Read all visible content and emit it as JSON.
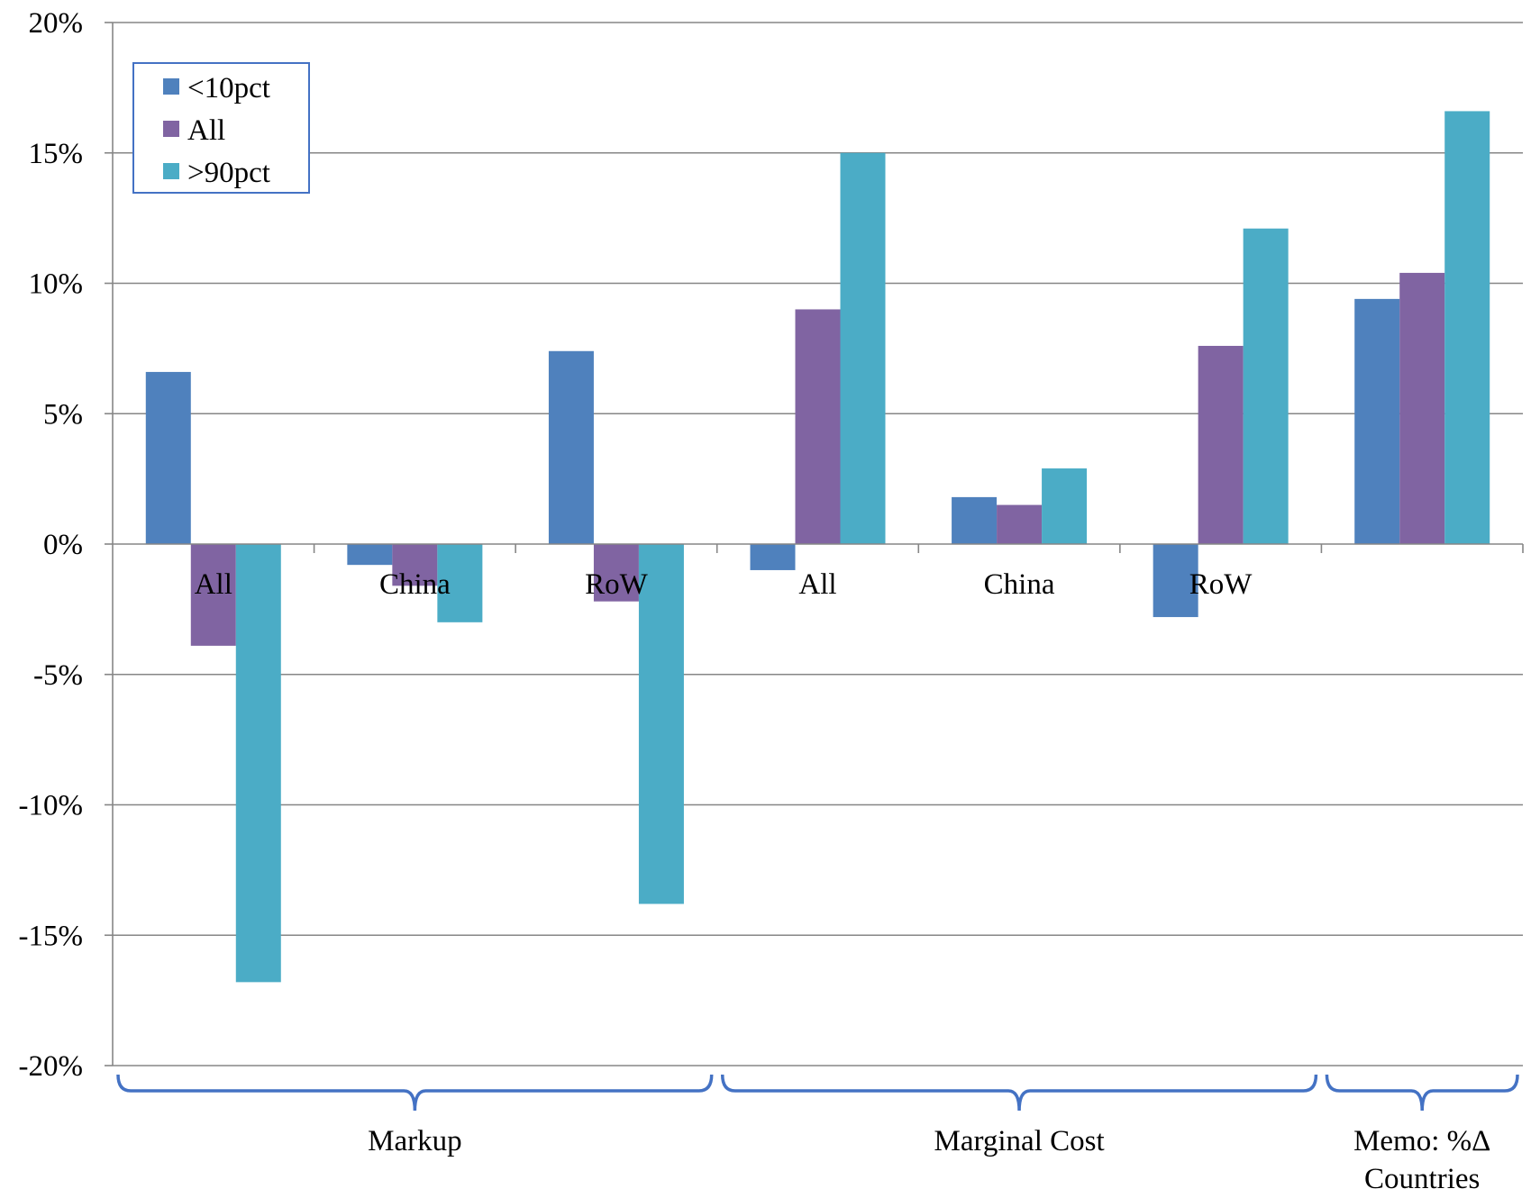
{
  "chart_data": {
    "type": "bar",
    "categories": [
      "All",
      "China",
      "RoW",
      "All",
      "China",
      "RoW",
      ""
    ],
    "series": [
      {
        "name": "<10pct",
        "color": "#4F81BD",
        "values": [
          6.6,
          -0.8,
          7.4,
          -1.0,
          1.8,
          -2.8,
          9.4
        ]
      },
      {
        "name": "All",
        "color": "#8064A2",
        "values": [
          -3.9,
          -1.6,
          -2.2,
          9.0,
          1.5,
          7.6,
          10.4
        ]
      },
      {
        "name": ">90pct",
        "color": "#4BACC6",
        "values": [
          -16.8,
          -3.0,
          -13.8,
          15.0,
          2.9,
          12.1,
          16.6
        ]
      }
    ],
    "ylim": [
      -20,
      20
    ],
    "yticks": [
      20,
      15,
      10,
      5,
      0,
      -5,
      -10,
      -15,
      -20
    ],
    "yticklabels": [
      "20%",
      "15%",
      "10%",
      "5%",
      "0%",
      "-5%",
      "-10%",
      "-15%",
      "-20%"
    ],
    "grid": true,
    "legend_position": "top-left",
    "groups": [
      {
        "label": "Markup",
        "from": 0,
        "to": 2
      },
      {
        "label": "Marginal Cost",
        "from": 3,
        "to": 5
      },
      {
        "label_lines": [
          "Memo: %Δ",
          "Countries"
        ],
        "from": 6,
        "to": 6
      }
    ],
    "xlabel": "",
    "ylabel": "",
    "title": ""
  }
}
